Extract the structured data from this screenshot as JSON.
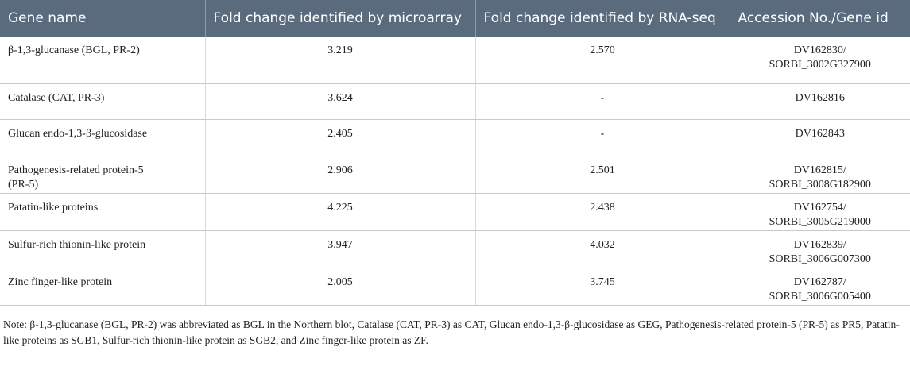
{
  "table": {
    "header": [
      "Gene name",
      "Fold change identified by microarray",
      "Fold change identified by RNA-seq",
      "Accession No./Gene id"
    ],
    "rows": [
      [
        "β-1,3-glucanase (BGL, PR-2)",
        "3.219",
        "2.570",
        "DV162830/\nSORBI_3002G327900"
      ],
      [
        "Catalase (CAT, PR-3)",
        "3.624",
        "-",
        "DV162816"
      ],
      [
        "Glucan endo-1,3-β-glucosidase",
        "2.405",
        "-",
        "DV162843"
      ],
      [
        "Pathogenesis-related protein-5\n(PR-5)",
        "2.906",
        "2.501",
        "DV162815/\nSORBI_3008G182900"
      ],
      [
        "Patatin-like proteins",
        "4.225",
        "2.438",
        "DV162754/\nSORBI_3005G219000"
      ],
      [
        "Sulfur-rich thionin-like protein",
        "3.947",
        "4.032",
        "DV162839/\nSORBI_3006G007300"
      ],
      [
        "Zinc finger-like protein",
        "2.005",
        "3.745",
        "DV162787/\nSORBI_3006G005400"
      ]
    ],
    "note": "Note: β-1,3-glucanase (BGL, PR-2) was abbreviated as BGL in the Northern blot, Catalase (CAT, PR-3) as CAT, Glucan endo-1,3-β-glucosidase as GEG, Pathogenesis-related protein-5 (PR-5) as PR5, Patatin-like proteins as SGB1, Sulfur-rich thionin-like protein as SGB2, and Zinc finger-like protein as ZF."
  }
}
